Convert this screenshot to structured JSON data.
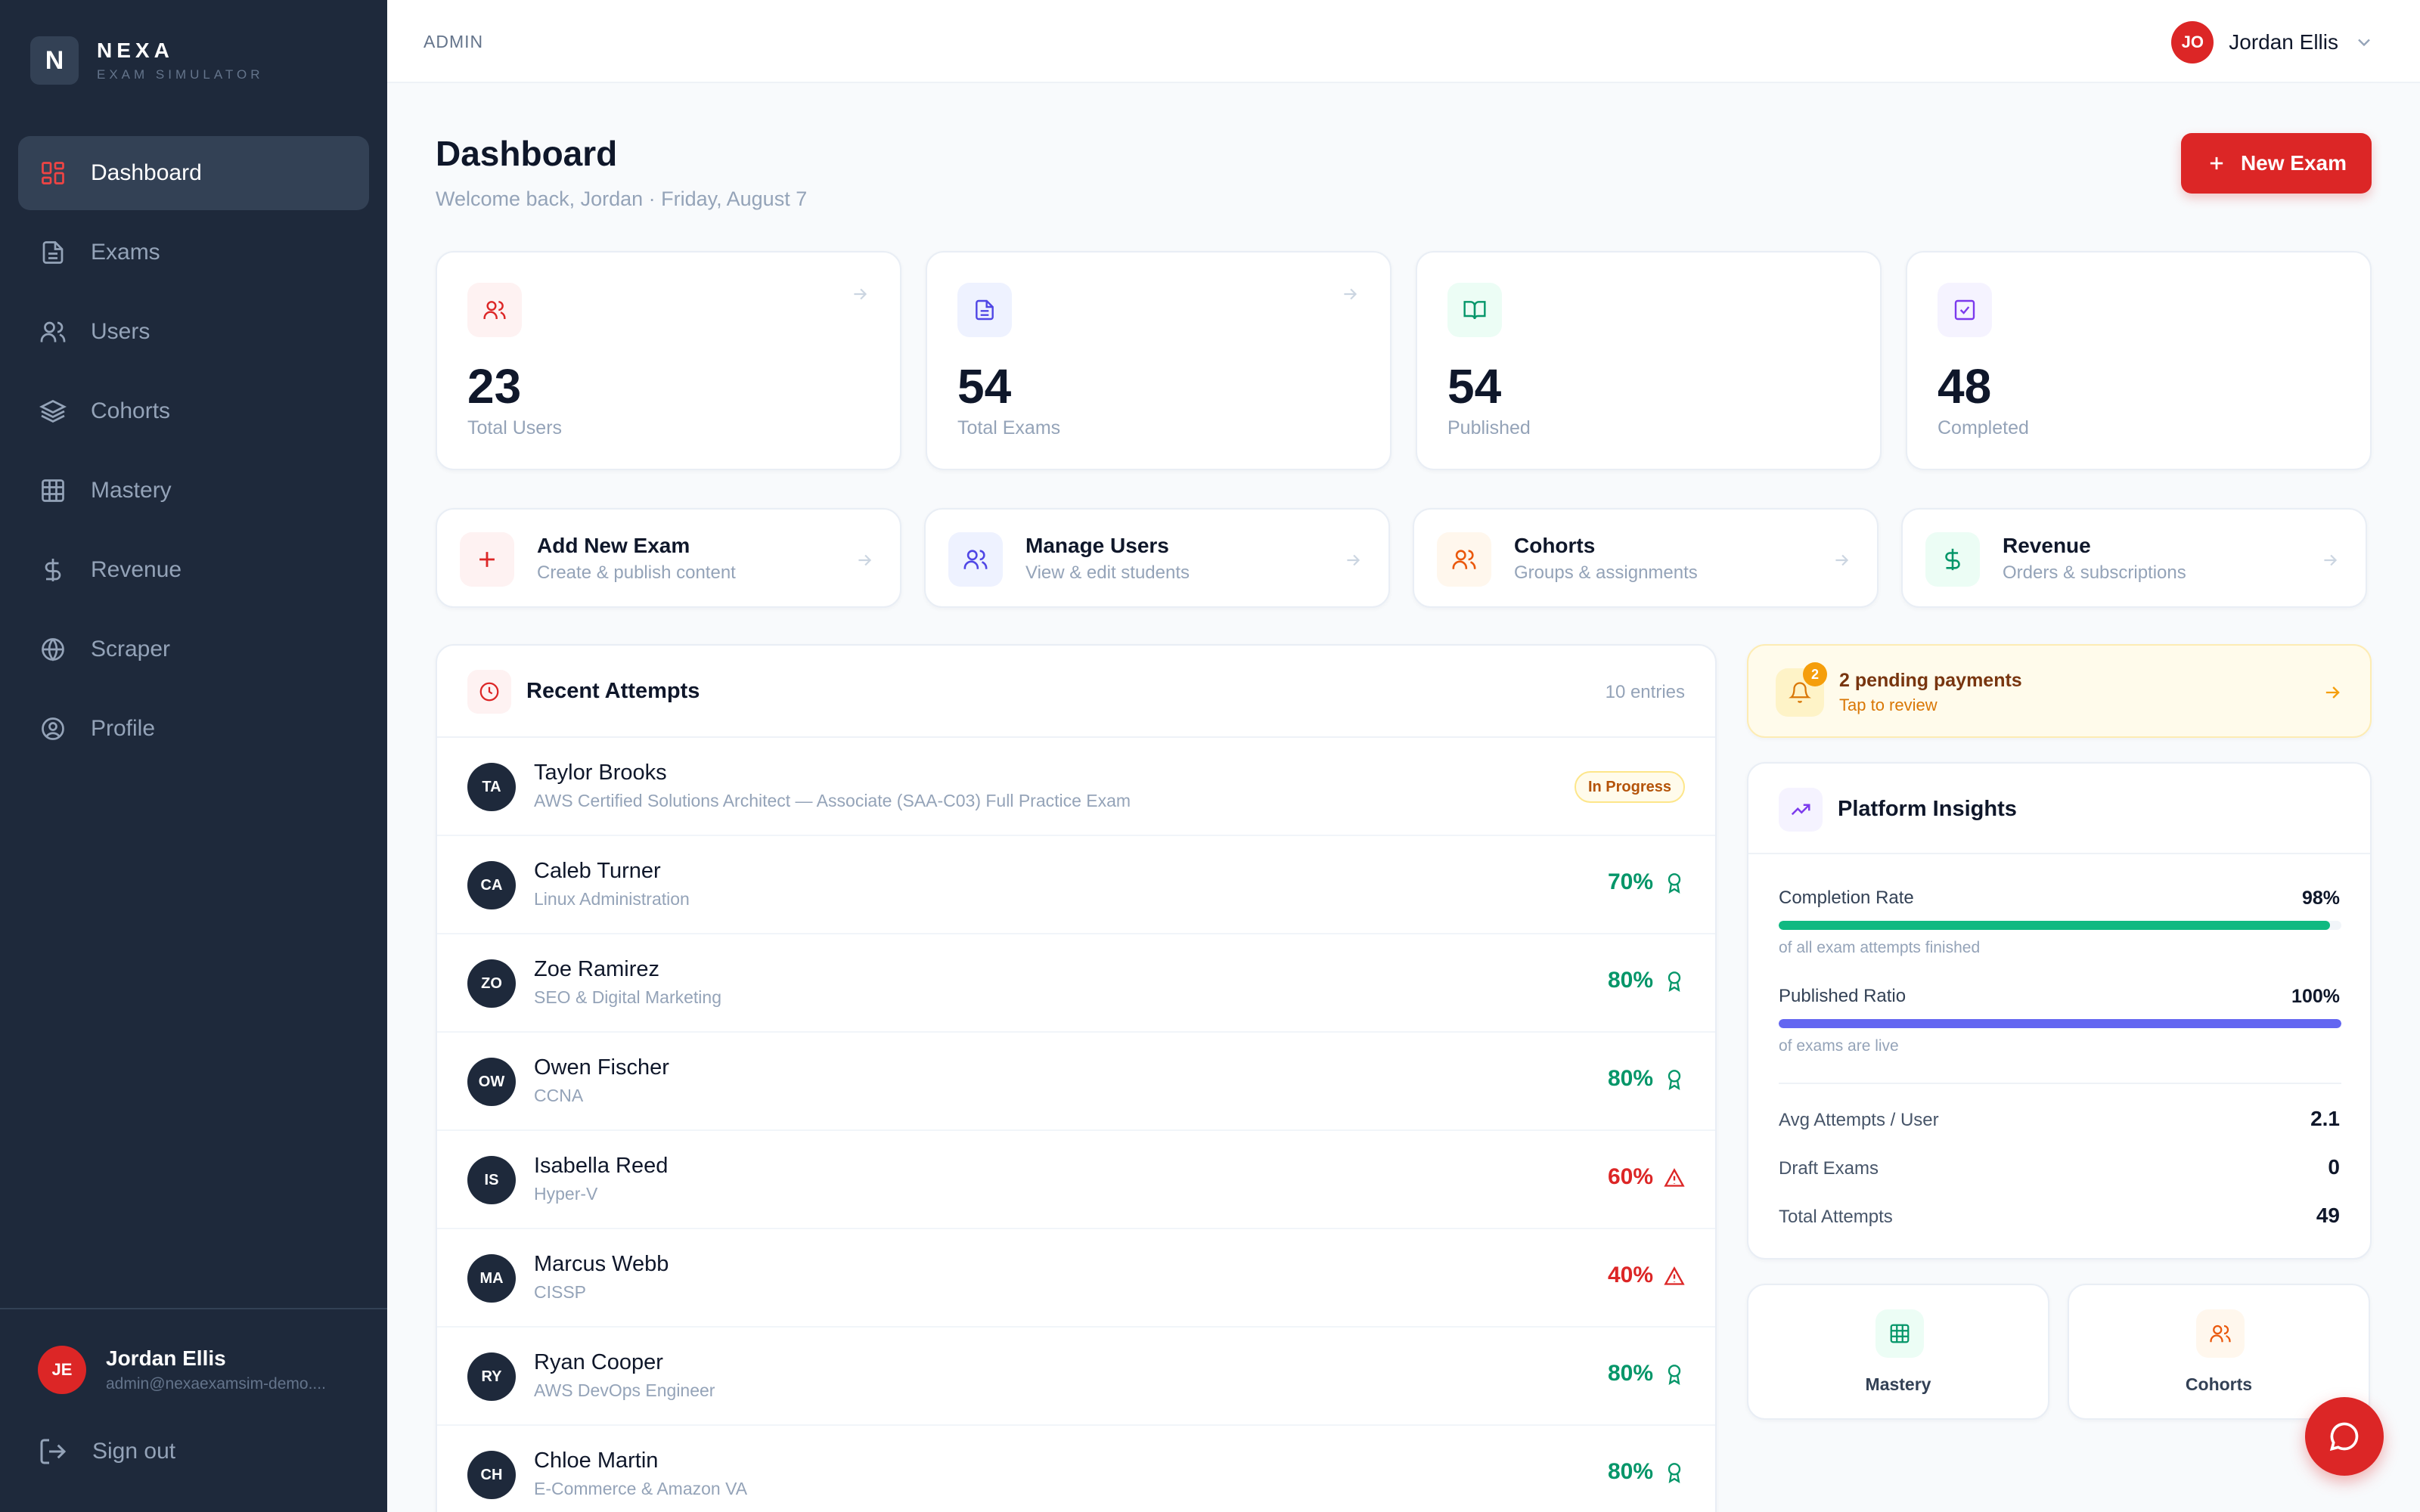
{
  "brand": {
    "logo_letter": "N",
    "name": "NEXA",
    "tagline": "EXAM SIMULATOR"
  },
  "sidebar": {
    "items": [
      {
        "label": "Dashboard",
        "icon": "grid-icon",
        "active": true
      },
      {
        "label": "Exams",
        "icon": "file-icon"
      },
      {
        "label": "Users",
        "icon": "users-icon"
      },
      {
        "label": "Cohorts",
        "icon": "layers-icon"
      },
      {
        "label": "Mastery",
        "icon": "table-icon"
      },
      {
        "label": "Revenue",
        "icon": "dollar-icon"
      },
      {
        "label": "Scraper",
        "icon": "globe-icon"
      },
      {
        "label": "Profile",
        "icon": "user-circle-icon"
      }
    ],
    "user": {
      "initials": "JE",
      "name": "Jordan Ellis",
      "email": "admin@nexaexamsim-demo...."
    },
    "signout_label": "Sign out"
  },
  "header": {
    "breadcrumb": "ADMIN",
    "user_initials": "JO",
    "user_name": "Jordan Ellis"
  },
  "main": {
    "title": "Dashboard",
    "subtitle": "Welcome back, Jordan · Friday, August 7",
    "new_exam_label": "New Exam",
    "stats": [
      {
        "value": "23",
        "label": "Total Users",
        "icon": "users-icon",
        "color": "#dc2626"
      },
      {
        "value": "54",
        "label": "Total Exams",
        "icon": "file-icon",
        "color": "#4f46e5"
      },
      {
        "value": "54",
        "label": "Published",
        "icon": "book-open-icon",
        "color": "#059669"
      },
      {
        "value": "48",
        "label": "Completed",
        "icon": "check-square-icon",
        "color": "#7c3aed"
      }
    ],
    "quick_actions": [
      {
        "title": "Add New Exam",
        "subtitle": "Create & publish content",
        "icon": "plus-icon"
      },
      {
        "title": "Manage Users",
        "subtitle": "View & edit students",
        "icon": "users-icon"
      },
      {
        "title": "Cohorts",
        "subtitle": "Groups & assignments",
        "icon": "users-icon"
      },
      {
        "title": "Revenue",
        "subtitle": "Orders & subscriptions",
        "icon": "dollar-icon"
      }
    ]
  },
  "recent": {
    "title": "Recent Attempts",
    "count": "10 entries",
    "rows": [
      {
        "initials": "TA",
        "name": "Taylor Brooks",
        "exam": "AWS Certified Solutions Architect — Associate (SAA-C03) Full Practice Exam",
        "status": "In Progress"
      },
      {
        "initials": "CA",
        "name": "Caleb Turner",
        "exam": "Linux Administration",
        "score": "70%",
        "pass": true
      },
      {
        "initials": "ZO",
        "name": "Zoe Ramirez",
        "exam": "SEO & Digital Marketing",
        "score": "80%",
        "pass": true
      },
      {
        "initials": "OW",
        "name": "Owen Fischer",
        "exam": "CCNA",
        "score": "80%",
        "pass": true
      },
      {
        "initials": "IS",
        "name": "Isabella Reed",
        "exam": "Hyper-V",
        "score": "60%",
        "pass": false
      },
      {
        "initials": "MA",
        "name": "Marcus Webb",
        "exam": "CISSP",
        "score": "40%",
        "pass": false
      },
      {
        "initials": "RY",
        "name": "Ryan Cooper",
        "exam": "AWS DevOps Engineer",
        "score": "80%",
        "pass": true
      },
      {
        "initials": "CH",
        "name": "Chloe Martin",
        "exam": "E-Commerce & Amazon VA",
        "score": "80%",
        "pass": true
      }
    ]
  },
  "pending": {
    "count": "2",
    "title": "2 pending payments",
    "subtitle": "Tap to review"
  },
  "insights": {
    "title": "Platform Insights",
    "completion": {
      "label": "Completion Rate",
      "value": "98%",
      "fill": 0.98,
      "hint": "of all exam attempts finished",
      "color": "#10b981"
    },
    "published": {
      "label": "Published Ratio",
      "value": "100%",
      "fill": 1.0,
      "hint": "of exams are live",
      "color": "#6366f1"
    },
    "kv": [
      {
        "label": "Avg Attempts / User",
        "value": "2.1"
      },
      {
        "label": "Draft Exams",
        "value": "0"
      },
      {
        "label": "Total Attempts",
        "value": "49"
      }
    ]
  },
  "mini_links": [
    {
      "label": "Mastery",
      "icon": "table-icon"
    },
    {
      "label": "Cohorts",
      "icon": "users-icon"
    }
  ],
  "chat_fab": {
    "icon": "chat-icon"
  }
}
